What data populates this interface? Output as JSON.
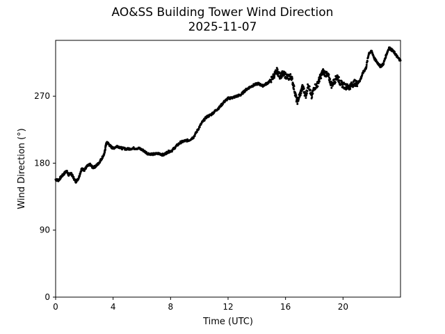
{
  "chart_data": {
    "type": "scatter",
    "title": "AO&SS Building Tower Wind Direction",
    "subtitle": "2025-11-07",
    "xlabel": "Time (UTC)",
    "ylabel": "Wind Direction (°)",
    "xlim": [
      0,
      24
    ],
    "ylim": [
      0,
      345
    ],
    "xticks": [
      0,
      4,
      8,
      12,
      16,
      20
    ],
    "xtick_labels": [
      "0",
      "4",
      "8",
      "12",
      "16",
      "20"
    ],
    "yticks": [
      0,
      90,
      180,
      270
    ],
    "ytick_labels": [
      "0",
      "90",
      "180",
      "270"
    ],
    "grid": false,
    "legend": "none",
    "marker_color": "#000000",
    "series": [
      {
        "points": [
          [
            0.0,
            158
          ],
          [
            0.2,
            157
          ],
          [
            0.4,
            162
          ],
          [
            0.6,
            166
          ],
          [
            0.75,
            170
          ],
          [
            0.9,
            164
          ],
          [
            1.05,
            167
          ],
          [
            1.2,
            162
          ],
          [
            1.4,
            155
          ],
          [
            1.6,
            160
          ],
          [
            1.8,
            172
          ],
          [
            2.0,
            171
          ],
          [
            2.2,
            176
          ],
          [
            2.4,
            178
          ],
          [
            2.6,
            174
          ],
          [
            2.8,
            176
          ],
          [
            3.0,
            180
          ],
          [
            3.2,
            186
          ],
          [
            3.4,
            193
          ],
          [
            3.5,
            205
          ],
          [
            3.6,
            208
          ],
          [
            3.8,
            203
          ],
          [
            4.0,
            200
          ],
          [
            4.3,
            203
          ],
          [
            4.6,
            200
          ],
          [
            5.0,
            199
          ],
          [
            5.4,
            200
          ],
          [
            5.8,
            200
          ],
          [
            6.1,
            197
          ],
          [
            6.4,
            193
          ],
          [
            6.8,
            192
          ],
          [
            7.2,
            193
          ],
          [
            7.5,
            191
          ],
          [
            7.8,
            195
          ],
          [
            8.1,
            197
          ],
          [
            8.4,
            203
          ],
          [
            8.7,
            208
          ],
          [
            9.0,
            210
          ],
          [
            9.3,
            211
          ],
          [
            9.6,
            215
          ],
          [
            9.9,
            225
          ],
          [
            10.2,
            235
          ],
          [
            10.5,
            242
          ],
          [
            10.8,
            245
          ],
          [
            11.1,
            250
          ],
          [
            11.4,
            255
          ],
          [
            11.7,
            262
          ],
          [
            12.0,
            267
          ],
          [
            12.3,
            268
          ],
          [
            12.6,
            270
          ],
          [
            12.9,
            272
          ],
          [
            13.2,
            278
          ],
          [
            13.5,
            282
          ],
          [
            13.8,
            285
          ],
          [
            14.1,
            287
          ],
          [
            14.4,
            284
          ],
          [
            14.7,
            287
          ],
          [
            15.0,
            292
          ],
          [
            15.2,
            298
          ],
          [
            15.4,
            304
          ],
          [
            15.6,
            297
          ],
          [
            15.8,
            300
          ],
          [
            16.0,
            298
          ],
          [
            16.2,
            295
          ],
          [
            16.4,
            297
          ],
          [
            16.6,
            280
          ],
          [
            16.8,
            262
          ],
          [
            17.0,
            272
          ],
          [
            17.2,
            283
          ],
          [
            17.4,
            270
          ],
          [
            17.6,
            287
          ],
          [
            17.8,
            268
          ],
          [
            18.0,
            282
          ],
          [
            18.2,
            285
          ],
          [
            18.4,
            295
          ],
          [
            18.6,
            303
          ],
          [
            18.8,
            300
          ],
          [
            19.0,
            296
          ],
          [
            19.2,
            285
          ],
          [
            19.4,
            290
          ],
          [
            19.6,
            297
          ],
          [
            19.8,
            288
          ],
          [
            20.0,
            285
          ],
          [
            20.2,
            283
          ],
          [
            20.4,
            282
          ],
          [
            20.6,
            285
          ],
          [
            20.8,
            288
          ],
          [
            21.0,
            287
          ],
          [
            21.2,
            292
          ],
          [
            21.4,
            302
          ],
          [
            21.6,
            308
          ],
          [
            21.8,
            328
          ],
          [
            22.0,
            330
          ],
          [
            22.2,
            320
          ],
          [
            22.4,
            315
          ],
          [
            22.6,
            310
          ],
          [
            22.8,
            313
          ],
          [
            23.0,
            325
          ],
          [
            23.2,
            335
          ],
          [
            23.4,
            332
          ],
          [
            23.6,
            328
          ],
          [
            23.8,
            322
          ],
          [
            24.0,
            318
          ]
        ]
      }
    ]
  }
}
